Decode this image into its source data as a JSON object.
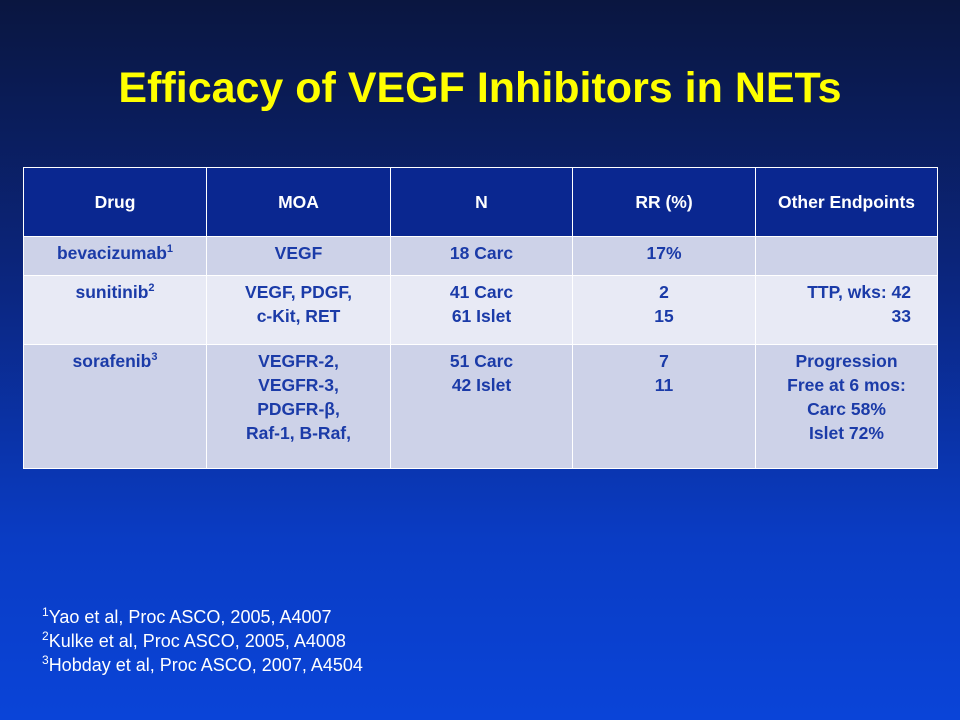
{
  "title": "Efficacy of VEGF Inhibitors in NETs",
  "table": {
    "headers": [
      "Drug",
      "MOA",
      "N",
      "RR (%)",
      "Other Endpoints"
    ],
    "rows": [
      {
        "drug": "bevacizumab",
        "drug_sup": "1",
        "moa": [
          "VEGF"
        ],
        "n": [
          "18 Carc"
        ],
        "rr": [
          "17%"
        ],
        "other": []
      },
      {
        "drug": "sunitinib",
        "drug_sup": "2",
        "moa": [
          "VEGF, PDGF,",
          "c-Kit, RET"
        ],
        "n": [
          "41 Carc",
          "61 Islet"
        ],
        "rr": [
          "2",
          "15"
        ],
        "other": [
          "TTP, wks:  42",
          "33"
        ]
      },
      {
        "drug": "sorafenib",
        "drug_sup": "3",
        "moa": [
          "VEGFR-2,",
          "VEGFR-3,",
          "PDGFR-β,",
          "Raf-1, B-Raf,"
        ],
        "n": [
          "51 Carc",
          "42 Islet"
        ],
        "rr": [
          "7",
          "11"
        ],
        "other": [
          "Progression",
          "Free at 6 mos:",
          "Carc 58%",
          "Islet 72%"
        ]
      }
    ]
  },
  "references": [
    {
      "num": "1",
      "text": "Yao et al, Proc ASCO, 2005,  A4007"
    },
    {
      "num": "2",
      "text": "Kulke et  al, Proc ASCO, 2005,  A4008"
    },
    {
      "num": "3",
      "text": "Hobday et al, Proc ASCO, 2007,  A4504"
    }
  ]
}
